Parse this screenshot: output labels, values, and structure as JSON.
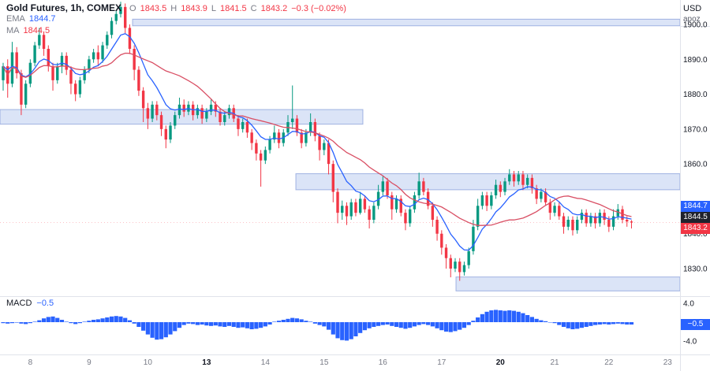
{
  "header": {
    "symbol": "Gold Futures, 1h, COMEX",
    "open_label": "O",
    "open": "1843.5",
    "high_label": "H",
    "high": "1843.9",
    "low_label": "L",
    "low": "1841.5",
    "close_label": "C",
    "close": "1843.2",
    "change": "−0.3 (−0.02%)",
    "ema_label": "EMA",
    "ema_value": "1844.7",
    "ma_label": "MA",
    "ma_value": "1844.5"
  },
  "price_axis": {
    "currency": "USD",
    "unit": "apoz",
    "badges": [
      {
        "name": "ema-price-badge",
        "label": "1844.7",
        "color": "#2962ff",
        "top": 255
      },
      {
        "name": "ma-price-badge",
        "label": "1844.5",
        "color": "#20222d",
        "top": 269
      },
      {
        "name": "last-price-badge",
        "label": "1843.2",
        "color": "#f23645",
        "top": 283
      },
      {
        "name": "macd-value-badge",
        "label": "−0.5",
        "color": "#2962ff",
        "top": 405
      }
    ]
  },
  "macd_pane": {
    "title": "MACD",
    "value": "−0.5"
  },
  "chart_data": [
    {
      "type": "candlestick",
      "title": "Gold Futures, 1h, COMEX",
      "last_ohlc": {
        "open": 1843.5,
        "high": 1843.9,
        "low": 1841.5,
        "close": 1843.2,
        "change": -0.3,
        "change_pct": -0.02
      },
      "overlays": [
        {
          "name": "EMA",
          "value": 1844.7,
          "period": 9
        },
        {
          "name": "MA",
          "value": 1844.5,
          "period": 21
        }
      ],
      "y_range": [
        1823,
        1907
      ],
      "y_ticks": [
        1900,
        1890,
        1880,
        1870,
        1860,
        1840,
        1830
      ],
      "x_axis_days": [
        {
          "label": "8",
          "i": 6
        },
        {
          "label": "9",
          "i": 19
        },
        {
          "label": "10",
          "i": 32
        },
        {
          "label": "13",
          "i": 45,
          "bold": true
        },
        {
          "label": "14",
          "i": 58
        },
        {
          "label": "15",
          "i": 71
        },
        {
          "label": "16",
          "i": 84
        },
        {
          "label": "17",
          "i": 97
        },
        {
          "label": "20",
          "i": 110,
          "bold": true
        },
        {
          "label": "21",
          "i": 122
        },
        {
          "label": "22",
          "i": 134
        },
        {
          "label": "23",
          "i": 147
        }
      ],
      "zones": [
        {
          "name": "resistance-zone-1900",
          "x1": 168,
          "x2": 862,
          "top": 1901.5,
          "bottom": 1899.6
        },
        {
          "name": "resistance-zone-1873",
          "x1": 0,
          "x2": 460,
          "top": 1875.6,
          "bottom": 1871.4
        },
        {
          "name": "resistance-zone-1855",
          "x1": 375,
          "x2": 862,
          "top": 1857.2,
          "bottom": 1852.6
        },
        {
          "name": "support-zone-1825",
          "x1": 578,
          "x2": 862,
          "top": 1827.6,
          "bottom": 1823.6
        }
      ],
      "colors": {
        "up": "#089981",
        "down": "#f23645",
        "ema": "#2962ff",
        "ma": "#d94f64",
        "zone_fill": "rgba(144,170,229,0.32)",
        "zone_border": "rgba(98,128,205,0.55)"
      },
      "candles": [
        [
          1884,
          1889,
          1881,
          1888
        ],
        [
          1888,
          1890,
          1879,
          1883
        ],
        [
          1883,
          1895,
          1882,
          1892
        ],
        [
          1892,
          1893.5,
          1884.5,
          1886
        ],
        [
          1886,
          1887,
          1874,
          1877
        ],
        [
          1877,
          1884,
          1876,
          1883
        ],
        [
          1883,
          1890,
          1882,
          1889
        ],
        [
          1889,
          1895,
          1888,
          1894
        ],
        [
          1894,
          1899,
          1893,
          1897
        ],
        [
          1897,
          1898,
          1891,
          1893
        ],
        [
          1893,
          1894,
          1886.5,
          1888
        ],
        [
          1888,
          1889,
          1881,
          1884
        ],
        [
          1884,
          1889,
          1883,
          1888
        ],
        [
          1888,
          1892,
          1886,
          1891
        ],
        [
          1891,
          1892,
          1885.5,
          1887
        ],
        [
          1887,
          1888,
          1880,
          1883
        ],
        [
          1883,
          1884,
          1878,
          1880
        ],
        [
          1880,
          1885,
          1879,
          1884
        ],
        [
          1884,
          1888,
          1883,
          1887
        ],
        [
          1887,
          1891,
          1886,
          1890
        ],
        [
          1890,
          1893,
          1889,
          1892
        ],
        [
          1892,
          1894,
          1888,
          1890
        ],
        [
          1890,
          1895,
          1889,
          1894
        ],
        [
          1894,
          1898,
          1893,
          1897
        ],
        [
          1897,
          1902,
          1896,
          1901
        ],
        [
          1901,
          1904,
          1900,
          1903
        ],
        [
          1903,
          1906.5,
          1902,
          1905
        ],
        [
          1905,
          1906,
          1897.5,
          1899
        ],
        [
          1899,
          1900,
          1891.5,
          1893
        ],
        [
          1893,
          1894,
          1884,
          1887
        ],
        [
          1887,
          1888,
          1879.5,
          1881
        ],
        [
          1881,
          1882,
          1872,
          1876
        ],
        [
          1876,
          1877.5,
          1870,
          1873
        ],
        [
          1873,
          1878,
          1872,
          1877
        ],
        [
          1877,
          1878,
          1872.5,
          1874
        ],
        [
          1874,
          1875,
          1868,
          1870
        ],
        [
          1870,
          1871,
          1864.5,
          1867
        ],
        [
          1867,
          1872,
          1866,
          1871
        ],
        [
          1871,
          1875,
          1870,
          1874
        ],
        [
          1874,
          1879,
          1873,
          1877
        ],
        [
          1877,
          1878.5,
          1873.5,
          1875
        ],
        [
          1875,
          1878,
          1874,
          1877
        ],
        [
          1877,
          1878,
          1872.5,
          1874
        ],
        [
          1874,
          1877,
          1873,
          1876
        ],
        [
          1876,
          1877,
          1871.5,
          1873
        ],
        [
          1873,
          1876,
          1872,
          1875
        ],
        [
          1875,
          1878.5,
          1874,
          1877
        ],
        [
          1877,
          1878,
          1873.5,
          1875
        ],
        [
          1875,
          1876,
          1871,
          1872
        ],
        [
          1872,
          1875,
          1871,
          1874
        ],
        [
          1874,
          1877,
          1873,
          1876
        ],
        [
          1876,
          1877,
          1872,
          1873
        ],
        [
          1873,
          1874,
          1868,
          1870
        ],
        [
          1870,
          1873,
          1869,
          1872
        ],
        [
          1872,
          1873,
          1867.5,
          1869
        ],
        [
          1869,
          1870,
          1864,
          1866
        ],
        [
          1866,
          1867,
          1861,
          1863
        ],
        [
          1863,
          1864,
          1853.5,
          1861
        ],
        [
          1861,
          1865,
          1860,
          1864
        ],
        [
          1864,
          1868,
          1863,
          1867
        ],
        [
          1867,
          1871,
          1866,
          1869
        ],
        [
          1869,
          1870,
          1864.5,
          1866
        ],
        [
          1866,
          1870,
          1865,
          1869
        ],
        [
          1869,
          1874,
          1868,
          1872
        ],
        [
          1872,
          1882.5,
          1870,
          1873
        ],
        [
          1873,
          1874,
          1868,
          1869
        ],
        [
          1869,
          1870,
          1864.5,
          1866
        ],
        [
          1866,
          1870,
          1865,
          1869
        ],
        [
          1869,
          1874.5,
          1868,
          1872
        ],
        [
          1872,
          1873,
          1866.5,
          1868
        ],
        [
          1868,
          1869,
          1861,
          1864
        ],
        [
          1864,
          1867,
          1862.5,
          1866
        ],
        [
          1866,
          1867,
          1857,
          1860
        ],
        [
          1860,
          1861,
          1849,
          1852
        ],
        [
          1852,
          1853,
          1843,
          1846
        ],
        [
          1846,
          1849.5,
          1844,
          1848
        ],
        [
          1848,
          1849,
          1842.5,
          1845
        ],
        [
          1845,
          1850,
          1844,
          1849
        ],
        [
          1849,
          1850,
          1845,
          1846
        ],
        [
          1846,
          1852,
          1845.5,
          1850
        ],
        [
          1850,
          1851,
          1846,
          1847
        ],
        [
          1847,
          1848,
          1841.5,
          1844
        ],
        [
          1844,
          1849,
          1843,
          1848
        ],
        [
          1848,
          1854,
          1847,
          1852
        ],
        [
          1852,
          1856.5,
          1851,
          1855
        ],
        [
          1855,
          1856,
          1850,
          1851
        ],
        [
          1851,
          1852,
          1844,
          1847
        ],
        [
          1847,
          1851,
          1846,
          1850
        ],
        [
          1850,
          1851,
          1845,
          1846
        ],
        [
          1846,
          1847,
          1841,
          1843
        ],
        [
          1843,
          1848,
          1842,
          1847
        ],
        [
          1847,
          1852,
          1846,
          1851
        ],
        [
          1851,
          1857.5,
          1850,
          1855
        ],
        [
          1855,
          1856,
          1851,
          1852
        ],
        [
          1852,
          1853,
          1847,
          1848
        ],
        [
          1848,
          1849,
          1842,
          1844
        ],
        [
          1844,
          1845,
          1838,
          1840
        ],
        [
          1840,
          1841,
          1834,
          1836
        ],
        [
          1836,
          1837,
          1830,
          1833
        ],
        [
          1833,
          1834,
          1827.5,
          1830
        ],
        [
          1830,
          1833,
          1829,
          1832
        ],
        [
          1832,
          1833,
          1826.5,
          1829
        ],
        [
          1829,
          1832,
          1828,
          1831
        ],
        [
          1831,
          1836,
          1830,
          1835
        ],
        [
          1835,
          1844,
          1834,
          1842
        ],
        [
          1842,
          1850,
          1841,
          1848
        ],
        [
          1848,
          1852,
          1847,
          1851
        ],
        [
          1851,
          1852,
          1846.5,
          1848
        ],
        [
          1848,
          1852,
          1847,
          1851
        ],
        [
          1851,
          1855.5,
          1850,
          1854
        ],
        [
          1854,
          1855,
          1850.5,
          1852
        ],
        [
          1852,
          1856,
          1851,
          1855
        ],
        [
          1855,
          1858.5,
          1854,
          1857
        ],
        [
          1857,
          1858,
          1853.5,
          1855
        ],
        [
          1855,
          1858,
          1854,
          1857
        ],
        [
          1857,
          1858,
          1852.5,
          1854
        ],
        [
          1854,
          1857,
          1853,
          1856
        ],
        [
          1856,
          1857,
          1851.5,
          1853
        ],
        [
          1853,
          1854,
          1848.5,
          1850
        ],
        [
          1850,
          1853,
          1849,
          1852
        ],
        [
          1852,
          1853,
          1848,
          1849
        ],
        [
          1849,
          1850,
          1844,
          1846
        ],
        [
          1846,
          1849,
          1845,
          1848
        ],
        [
          1848,
          1849,
          1844,
          1845
        ],
        [
          1845,
          1846,
          1840,
          1842
        ],
        [
          1842,
          1845,
          1841,
          1844
        ],
        [
          1844,
          1845,
          1839.5,
          1841
        ],
        [
          1841,
          1845,
          1840,
          1844
        ],
        [
          1844,
          1847,
          1843,
          1846
        ],
        [
          1846,
          1847,
          1842,
          1843
        ],
        [
          1843,
          1846,
          1842,
          1845
        ],
        [
          1845,
          1846,
          1841.5,
          1843
        ],
        [
          1843,
          1847,
          1842,
          1846
        ],
        [
          1846,
          1847,
          1842.5,
          1844
        ],
        [
          1844,
          1845,
          1840.5,
          1842
        ],
        [
          1842,
          1847,
          1841,
          1845
        ],
        [
          1845,
          1848.5,
          1844,
          1847
        ],
        [
          1847,
          1848,
          1843,
          1844
        ],
        [
          1844,
          1845,
          1842,
          1843.5
        ],
        [
          1843.5,
          1843.9,
          1841.5,
          1843.2
        ]
      ]
    },
    {
      "type": "bar",
      "name": "MACD histogram",
      "last_value": -0.5,
      "y_range": [
        -4.5,
        4.5
      ],
      "y_ticks": [
        4,
        -4
      ],
      "color": "#2962ff",
      "values": [
        -0.2,
        -0.3,
        -0.2,
        -0.1,
        -0.3,
        -0.4,
        -0.2,
        0.1,
        0.4,
        0.8,
        1.1,
        1.2,
        0.9,
        0.5,
        0.1,
        -0.2,
        -0.4,
        -0.2,
        0.1,
        0.3,
        0.5,
        0.6,
        0.8,
        1.0,
        1.2,
        1.3,
        1.2,
        0.9,
        0.4,
        -0.3,
        -1.0,
        -1.8,
        -2.6,
        -3.3,
        -3.7,
        -3.6,
        -3.2,
        -2.6,
        -1.9,
        -1.2,
        -0.6,
        -0.3,
        -0.4,
        -0.6,
        -0.5,
        -0.7,
        -0.8,
        -0.7,
        -0.9,
        -1.0,
        -0.8,
        -1.0,
        -1.2,
        -1.1,
        -1.3,
        -1.5,
        -1.4,
        -1.2,
        -0.9,
        -0.5,
        0.1,
        0.3,
        0.5,
        0.7,
        0.9,
        0.8,
        0.6,
        0.3,
        0.1,
        -0.3,
        -0.6,
        -0.9,
        -1.6,
        -2.6,
        -3.4,
        -3.8,
        -3.9,
        -3.6,
        -3.0,
        -2.3,
        -1.7,
        -1.3,
        -1.0,
        -0.8,
        -0.6,
        -0.5,
        -0.8,
        -1.0,
        -1.2,
        -1.4,
        -1.2,
        -0.9,
        -0.6,
        -0.4,
        -0.6,
        -0.9,
        -1.3,
        -1.7,
        -2.0,
        -2.1,
        -1.9,
        -1.6,
        -1.2,
        -0.6,
        0.3,
        1.0,
        1.7,
        2.2,
        2.5,
        2.6,
        2.5,
        2.4,
        2.5,
        2.4,
        2.2,
        1.9,
        1.5,
        1.1,
        0.7,
        0.4,
        0.2,
        0.0,
        -0.2,
        -0.6,
        -1.0,
        -1.3,
        -1.5,
        -1.4,
        -1.2,
        -1.0,
        -0.8,
        -0.6,
        -0.5,
        -0.4,
        -0.5,
        -0.4,
        -0.3,
        -0.4,
        -0.5,
        -0.5
      ]
    }
  ]
}
